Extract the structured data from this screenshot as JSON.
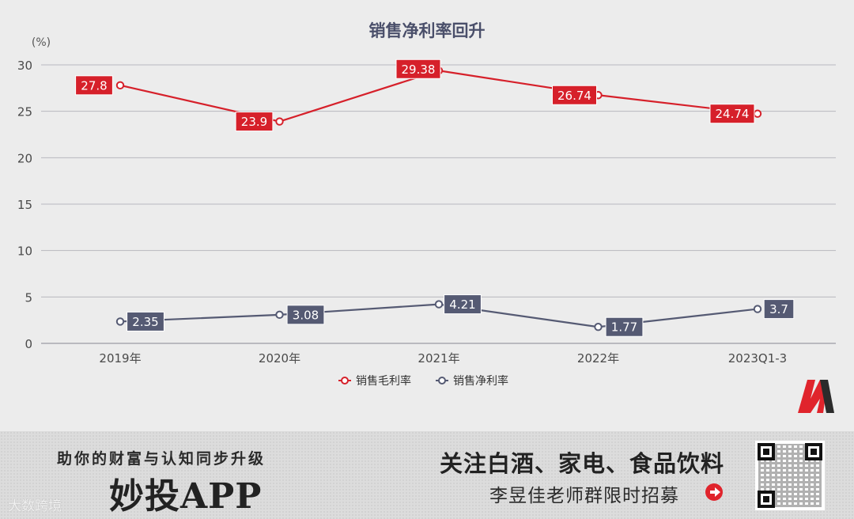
{
  "chart_data": {
    "type": "line",
    "title": "销售净利率回升",
    "y_unit": "(%)",
    "categories": [
      "2019年",
      "2020年",
      "2021年",
      "2022年",
      "2023Q1-3"
    ],
    "ylim": [
      0,
      30
    ],
    "yticks": [
      0,
      5,
      10,
      15,
      20,
      25,
      30
    ],
    "series": [
      {
        "name": "销售毛利率",
        "color": "#d6202a",
        "values": [
          27.8,
          23.9,
          29.38,
          26.74,
          24.74
        ],
        "labels": [
          "27.8",
          "23.9",
          "29.38",
          "26.74",
          "24.74"
        ]
      },
      {
        "name": "销售净利率",
        "color": "#555a73",
        "values": [
          2.35,
          3.08,
          4.21,
          1.77,
          3.7
        ],
        "labels": [
          "2.35",
          "3.08",
          "4.21",
          "1.77",
          "3.7"
        ]
      }
    ],
    "legend": "bottom"
  },
  "banner": {
    "left_subtitle": "助你的财富与认知同步升级",
    "left_app": "妙投APP",
    "right_title": "关注白酒、家电、食品饮料",
    "right_subtitle": "李昱佳老师群限时招募",
    "watermark": "大数跨境"
  },
  "colors": {
    "gross": "#d6202a",
    "net": "#555a73",
    "grid": "#b8b8bf",
    "bg": "#ececec"
  }
}
